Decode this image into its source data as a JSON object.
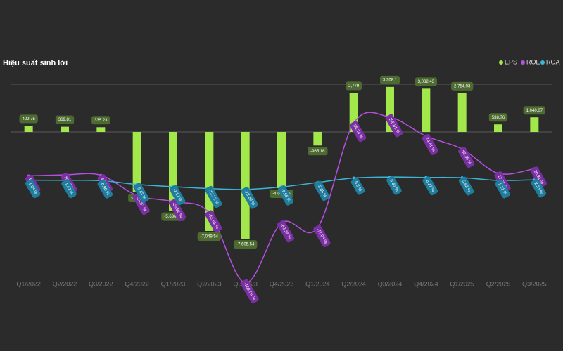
{
  "chart_data": {
    "type": "bar-line",
    "title": "Hiệu suất sinh lời",
    "categories": [
      "Q1/2022",
      "Q2/2022",
      "Q3/2022",
      "Q4/2022",
      "Q1/2023",
      "Q2/2023",
      "Q3/2023",
      "Q4/2023",
      "Q1/2024",
      "Q2/2024",
      "Q3/2024",
      "Q4/2024",
      "Q1/2025",
      "Q2/2025",
      "Q3/2025"
    ],
    "series": [
      {
        "name": "EPS",
        "type": "bar",
        "color": "#a3e84b",
        "values": [
          429.75,
          369.81,
          335.23,
          -4298,
          -5630.39,
          -7049.54,
          -7605.54,
          -4001.85,
          -965.16,
          2779,
          3208.1,
          3082.43,
          2754.93,
          538.76,
          1040.07
        ],
        "value_labels": [
          "429.75",
          "369.81",
          "335.23",
          "-4,298",
          "-5,630.39",
          "-7,049.54",
          "-7,605.54",
          "-4,001.85",
          "-965.16",
          "2,779",
          "3,208.1",
          "3,082.43",
          "2,754.93",
          "538.76",
          "1,040.07"
        ]
      },
      {
        "name": "ROE",
        "type": "line",
        "axis": "y2",
        "color": "#b44fe0",
        "values": [
          8.85,
          10.47,
          9.9,
          -23.67,
          -33.86,
          -52.61,
          -168.56,
          -69.34,
          -77.03,
          96.24,
          106.01,
          74.61,
          53.35,
          12.95,
          20.81
        ],
        "value_labels": [
          "8.85 %",
          "10.47 %",
          "9.90 %",
          "-23.67 %",
          "-33.86 %",
          "-52.61 %",
          "-168.56 %",
          "-69.34 %",
          "-77.03 %",
          "96.24 %",
          "106.01 %",
          "74.61 %",
          "53.35 %",
          "12.95 %",
          "20.81 %"
        ]
      },
      {
        "name": "ROA",
        "type": "line",
        "axis": "y2",
        "color": "#3bb6d8",
        "values": [
          1.65,
          1.47,
          0.9,
          -5.43,
          -9.17,
          -12.22,
          -13.68,
          -9.56,
          -2.08,
          5.3,
          6.85,
          6.27,
          5.82,
          1.21,
          2.33
        ],
        "value_labels": [
          "1.65 %",
          "1.47 %",
          "0.90 %",
          "-5.43 %",
          "-9.17 %",
          "-12.22 %",
          "-13.68 %",
          "-9.56 %",
          "-2.08 %",
          "5.3 %",
          "6.85 %",
          "6.27 %",
          "5.82 %",
          "1.21 %",
          "2.33 %"
        ]
      }
    ],
    "ylim": [
      -10850,
      4400
    ],
    "yticks": [
      0,
      3400
    ],
    "y2lim": [
      -171,
      184
    ],
    "grid": true,
    "legend": "top-right"
  }
}
